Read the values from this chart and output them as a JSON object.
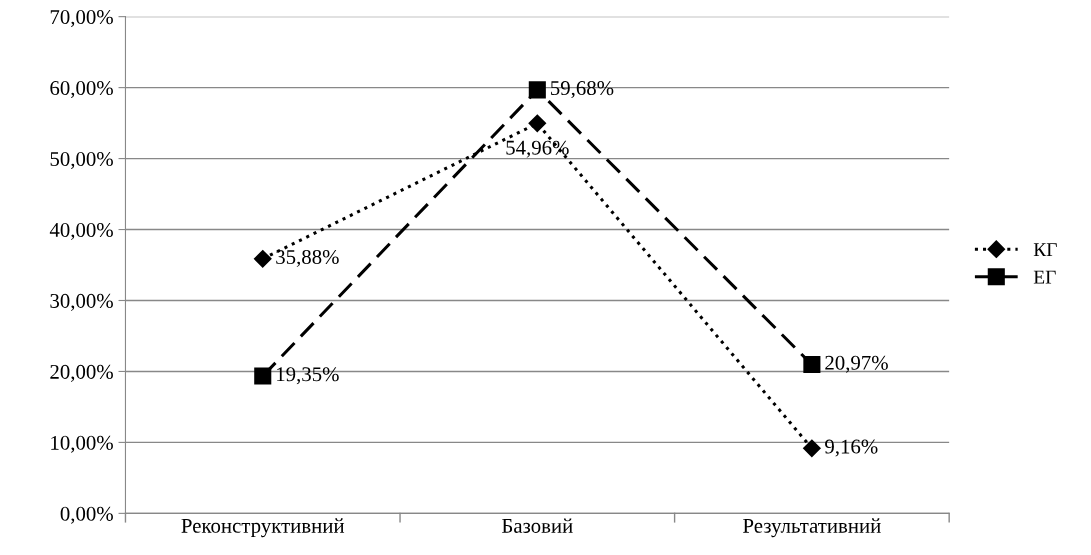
{
  "chart_data": {
    "type": "line",
    "categories": [
      "Реконструктивний",
      "Базовий",
      "Результативний"
    ],
    "series": [
      {
        "name": "КГ",
        "color": "#000000",
        "values": [
          35.88,
          54.96,
          9.16
        ],
        "value_labels": [
          "35,88%",
          "54,96%",
          "9,16%"
        ],
        "marker": "diamond",
        "line_style": "dotted"
      },
      {
        "name": "ЕГ",
        "color": "#000000",
        "values": [
          19.35,
          59.68,
          20.97
        ],
        "value_labels": [
          "19,35%",
          "59,68%",
          "20,97%"
        ],
        "marker": "square",
        "line_style": "dashed"
      }
    ],
    "ylim": [
      0,
      70
    ],
    "yticks": [
      {
        "value": 0,
        "label": "0,00%"
      },
      {
        "value": 10,
        "label": "10,00%"
      },
      {
        "value": 20,
        "label": "20,00%"
      },
      {
        "value": 30,
        "label": "30,00%"
      },
      {
        "value": 40,
        "label": "40,00%"
      },
      {
        "value": 50,
        "label": "50,00%"
      },
      {
        "value": 60,
        "label": "60,00%"
      },
      {
        "value": 70,
        "label": "70,00%"
      }
    ],
    "grid": "y",
    "legend": "right"
  }
}
